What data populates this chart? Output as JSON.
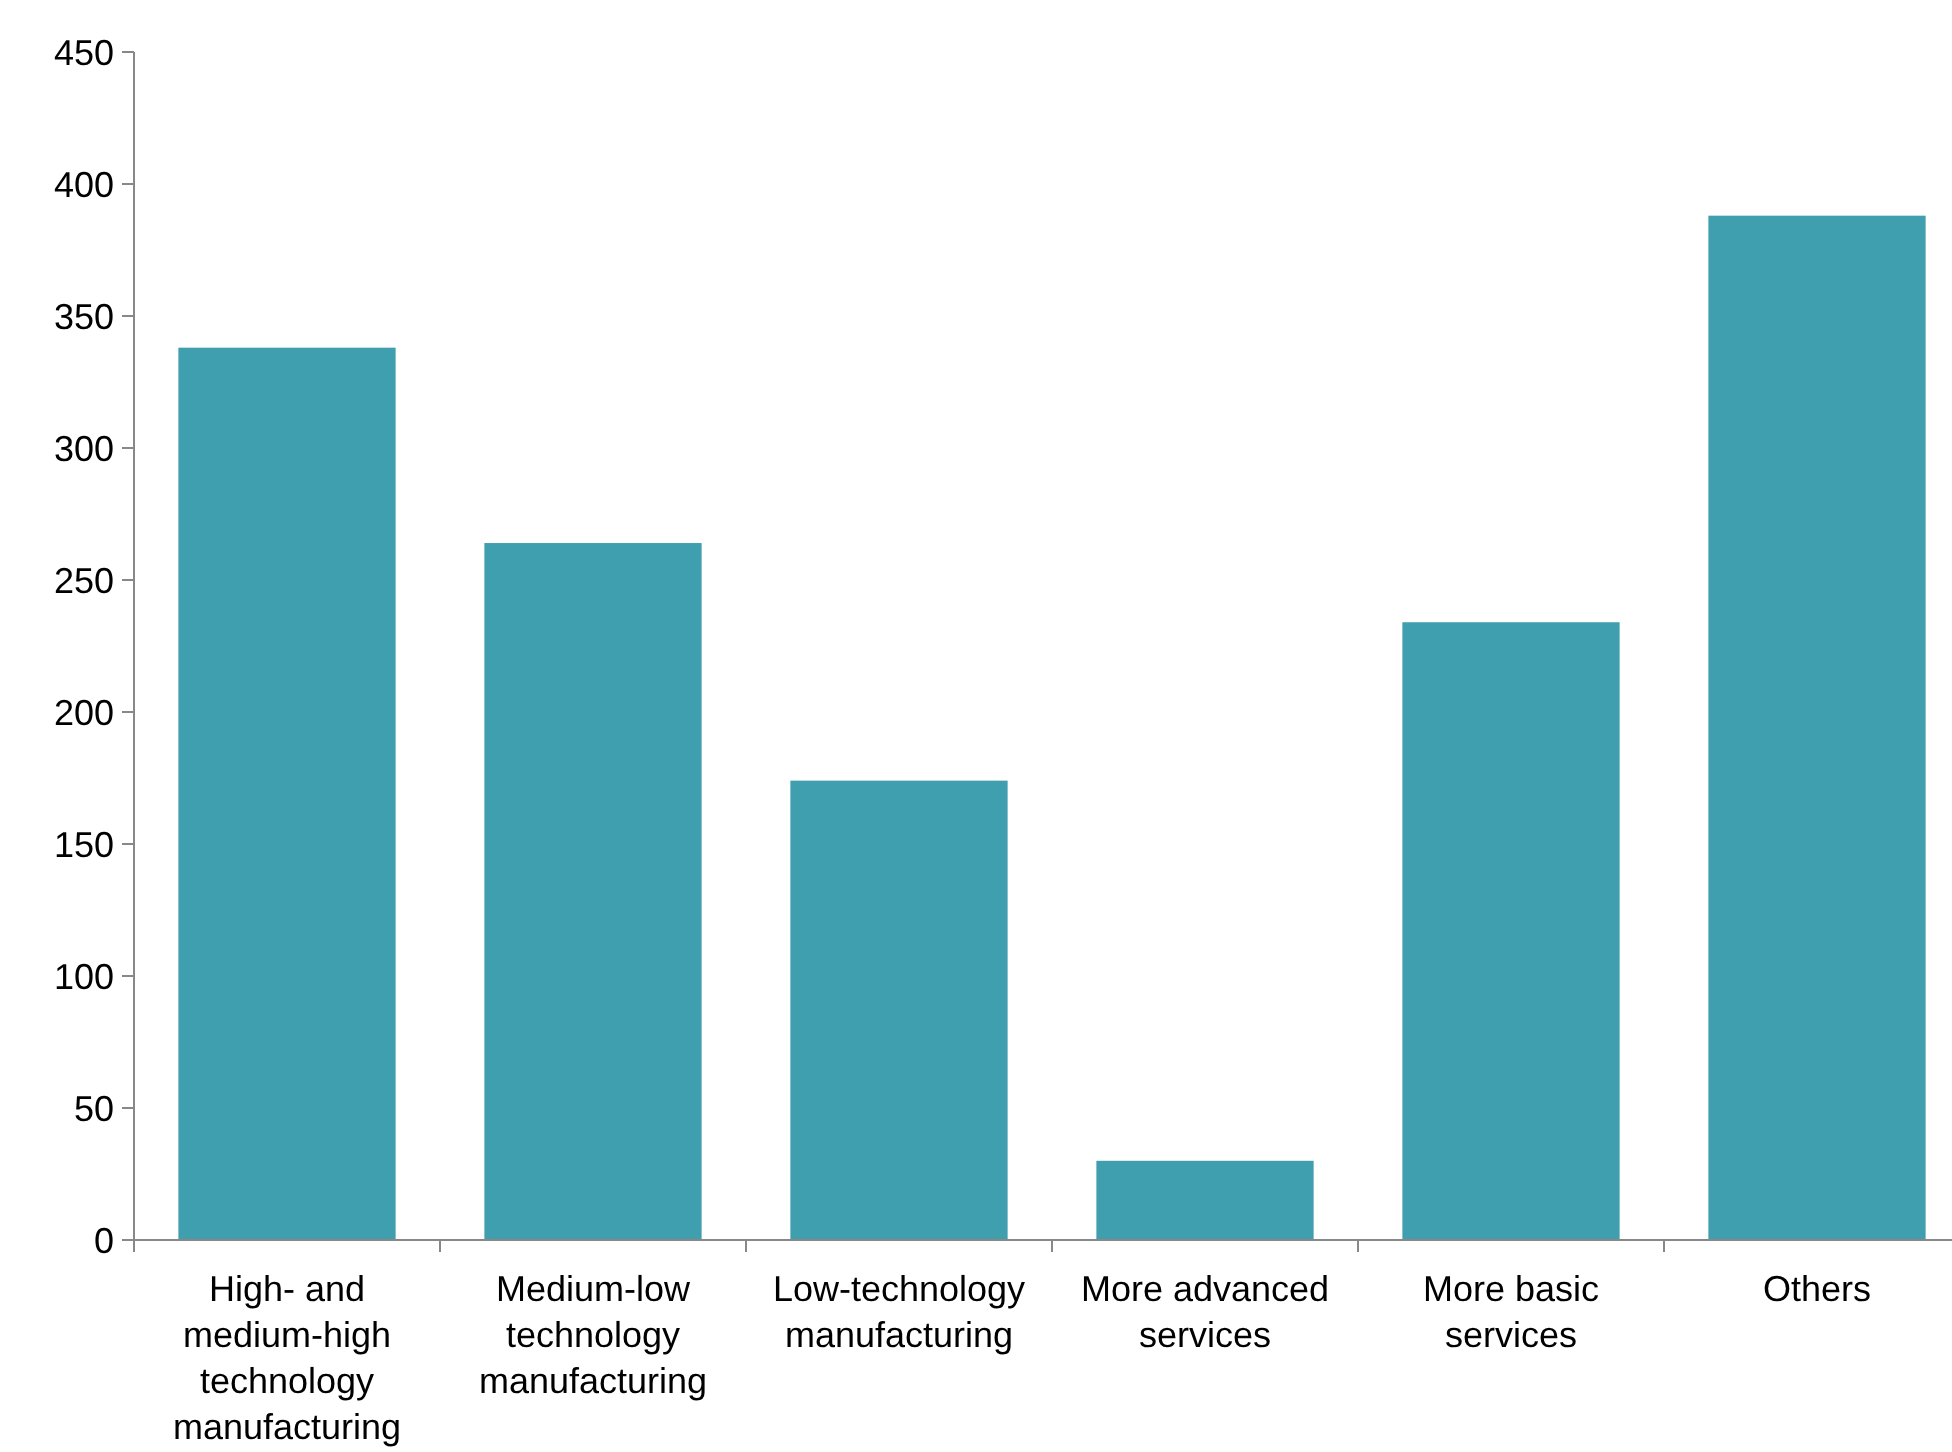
{
  "chart_data": {
    "type": "bar",
    "categories": [
      "High- and medium-high technology manufacturing",
      "Medium-low technology manufacturing",
      "Low-technology manufacturing",
      "More advanced services",
      "More basic services",
      "Others"
    ],
    "values": [
      338,
      264,
      174,
      30,
      234,
      388
    ],
    "color": "#409faf",
    "ylim": [
      0,
      450
    ],
    "yticks": [
      0,
      50,
      100,
      150,
      200,
      250,
      300,
      350,
      400,
      450
    ],
    "grid": false
  }
}
